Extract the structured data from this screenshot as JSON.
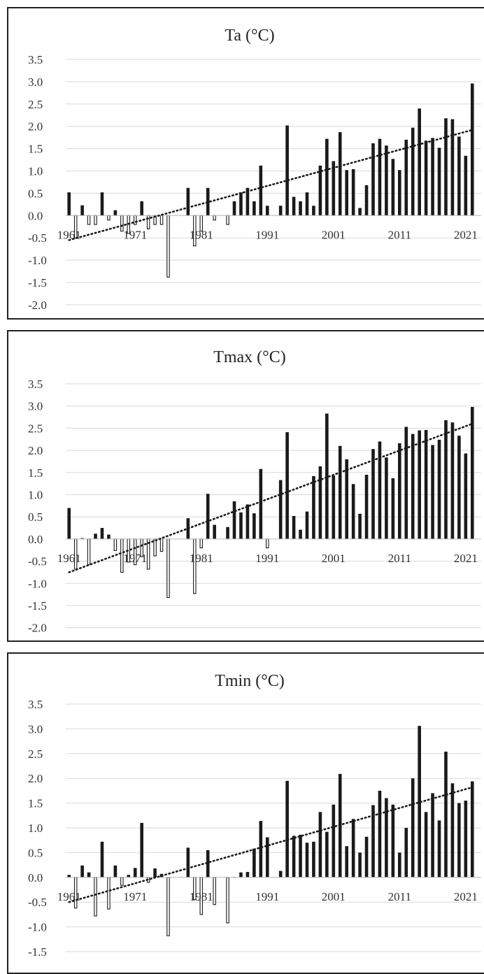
{
  "chart_data": [
    {
      "type": "bar",
      "title": "Ta (°C)",
      "x_start": 1961,
      "x_end": 2021,
      "x_tick_labels": [
        "1961",
        "1971",
        "1981",
        "1991",
        "2001",
        "2011",
        "2021"
      ],
      "y_tick_labels": [
        "3.5",
        "3.0",
        "2.5",
        "2.0",
        "1.5",
        "1.0",
        "0.5",
        "0.0",
        "-0.5",
        "-1.0",
        "-1.5",
        "-2.0"
      ],
      "ylim": [
        -2.0,
        3.5
      ],
      "values": [
        0.52,
        -0.5,
        0.23,
        -0.2,
        -0.2,
        0.52,
        -0.1,
        0.12,
        -0.35,
        -0.4,
        -0.2,
        0.32,
        -0.3,
        -0.2,
        -0.2,
        -1.38,
        0.0,
        0.0,
        0.62,
        -0.68,
        -0.35,
        0.62,
        -0.1,
        0.0,
        -0.2,
        0.32,
        0.52,
        0.62,
        0.32,
        1.12,
        0.22,
        0.0,
        0.22,
        2.02,
        0.42,
        0.32,
        0.52,
        0.22,
        1.12,
        1.72,
        1.22,
        1.87,
        1.02,
        1.04,
        0.17,
        0.68,
        1.62,
        1.72,
        1.57,
        1.27,
        1.02,
        1.7,
        1.97,
        2.4,
        1.68,
        1.74,
        1.52,
        2.18,
        2.16,
        1.77,
        1.34,
        2.96
      ],
      "trend": {
        "start": -0.55,
        "end": 1.92
      },
      "grid": true,
      "legend": "none"
    },
    {
      "type": "bar",
      "title": "Tmax (°C)",
      "x_start": 1961,
      "x_end": 2021,
      "x_tick_labels": [
        "1961",
        "1971",
        "1981",
        "1991",
        "2001",
        "2011",
        "2021"
      ],
      "y_tick_labels": [
        "3.5",
        "3.0",
        "2.5",
        "2.0",
        "1.5",
        "1.0",
        "0.5",
        "0.0",
        "-0.5",
        "-1.0",
        "-1.5",
        "-2.0"
      ],
      "ylim": [
        -2.0,
        3.5
      ],
      "values": [
        0.7,
        -0.68,
        0.02,
        -0.58,
        0.12,
        0.25,
        0.1,
        -0.26,
        -0.75,
        -0.52,
        -0.58,
        -0.4,
        -0.68,
        -0.38,
        -0.28,
        -1.32,
        0.0,
        0.0,
        0.47,
        -1.23,
        -0.2,
        1.02,
        0.32,
        0.0,
        0.27,
        0.85,
        0.6,
        0.78,
        0.58,
        1.58,
        -0.2,
        0.0,
        1.33,
        2.41,
        0.52,
        0.21,
        0.62,
        1.42,
        1.64,
        2.83,
        1.43,
        2.1,
        1.8,
        1.24,
        0.57,
        1.45,
        2.03,
        2.2,
        1.84,
        1.37,
        2.16,
        2.53,
        2.37,
        2.45,
        2.46,
        2.12,
        2.24,
        2.68,
        2.63,
        2.33,
        1.93,
        2.98
      ],
      "trend": {
        "start": -0.75,
        "end": 2.6
      },
      "grid": true,
      "legend": "none"
    },
    {
      "type": "bar",
      "title": "Tmin (°C)",
      "x_start": 1961,
      "x_end": 2021,
      "x_tick_labels": [
        "1961",
        "1971",
        "1981",
        "1991",
        "2001",
        "2011",
        "2021"
      ],
      "y_tick_labels": [
        "3.5",
        "3.0",
        "2.5",
        "2.0",
        "1.5",
        "1.0",
        "0.5",
        "0.0",
        "-0.5",
        "-1.0",
        "-1.5"
      ],
      "ylim": [
        -1.5,
        3.5
      ],
      "values": [
        0.05,
        -0.62,
        0.24,
        0.1,
        -0.78,
        0.72,
        -0.64,
        0.24,
        -0.16,
        0.05,
        0.19,
        1.1,
        -0.1,
        0.18,
        0.07,
        -1.18,
        0.0,
        0.0,
        0.6,
        -0.45,
        -0.75,
        0.55,
        -0.55,
        0.0,
        -0.92,
        0.01,
        0.1,
        0.11,
        0.58,
        1.14,
        0.81,
        0.0,
        0.13,
        1.95,
        0.84,
        0.86,
        0.7,
        0.72,
        1.32,
        0.92,
        1.47,
        2.09,
        0.63,
        1.18,
        0.5,
        0.82,
        1.46,
        1.75,
        1.6,
        1.47,
        0.5,
        1.0,
        2.0,
        3.06,
        1.32,
        1.7,
        1.15,
        2.54,
        1.9,
        1.5,
        1.55,
        1.94
      ],
      "trend": {
        "start": -0.5,
        "end": 1.82
      },
      "grid": true,
      "legend": "none"
    }
  ]
}
